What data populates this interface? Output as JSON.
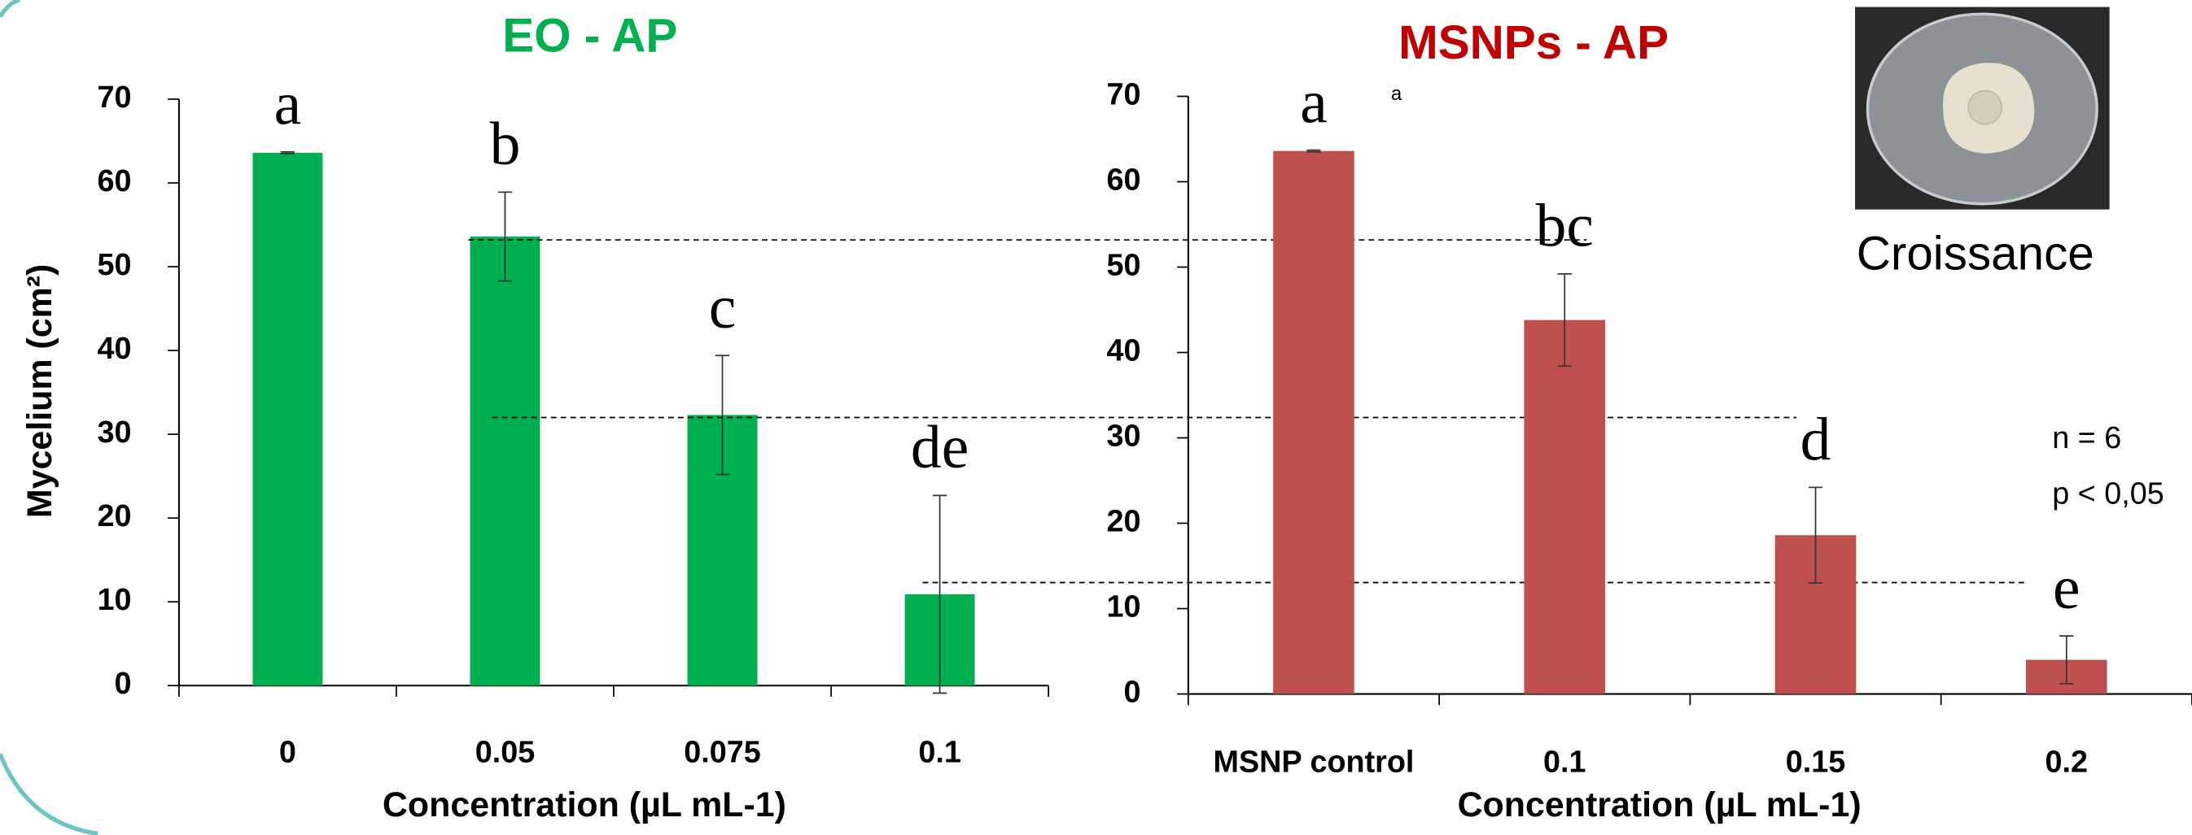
{
  "charts": [
    {
      "type": "bar",
      "title": "EO - AP",
      "title_color": "#00b050",
      "color": "#00b050",
      "y_label": "Mycelium (cm²)",
      "x_label": "Concentration (µL mL-1)",
      "categories": [
        "0",
        "0.05",
        "0.075",
        "0.1"
      ],
      "values": [
        63.6,
        53.6,
        32.3,
        10.9
      ],
      "errors": [
        0.1,
        5.3,
        7.1,
        11.8
      ],
      "letters": [
        "a",
        "b",
        "c",
        "de"
      ],
      "reference_lines": [
        53.2,
        32.0,
        12.3
      ],
      "ylim": [
        0,
        70
      ],
      "yticks": [
        0,
        10,
        20,
        30,
        40,
        50,
        60,
        70
      ]
    },
    {
      "type": "bar",
      "title": "MSNPs - AP",
      "title_color": "#c00000",
      "color": "#c0504d",
      "x_label": "Concentration (µL mL-1)",
      "note": "a",
      "categories": [
        "MSNP control",
        "0.1",
        "0.15",
        "0.2"
      ],
      "values": [
        63.6,
        43.8,
        18.6,
        4.0
      ],
      "errors": [
        0.1,
        5.4,
        5.6,
        2.8
      ],
      "letters": [
        "a",
        "bc",
        "d",
        "e"
      ],
      "ylim": [
        0,
        70
      ],
      "yticks": [
        0,
        10,
        20,
        30,
        40,
        50,
        60,
        70
      ]
    }
  ],
  "photo_caption": "Croissance",
  "stats": [
    "n = 6",
    "p < 0,05"
  ]
}
